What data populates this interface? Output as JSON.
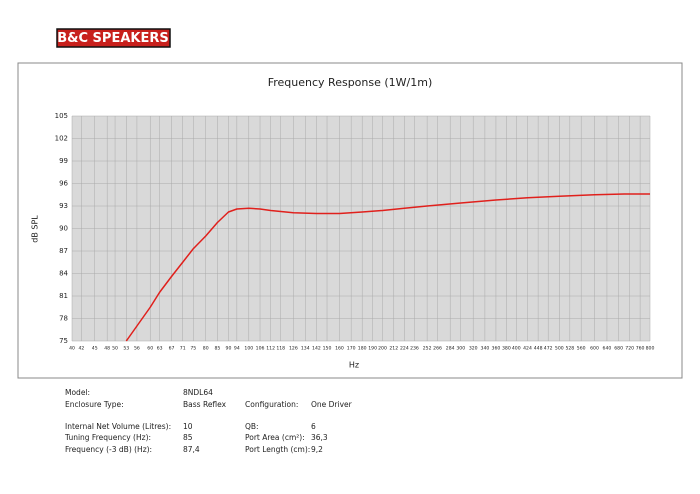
{
  "logo": "B&C SPEAKERS",
  "chart_data": {
    "type": "line",
    "title": "Frequency Response (1W/1m)",
    "x_label": "Hz",
    "y_label": "dB SPL",
    "log_x": true,
    "grid": true,
    "xlim": [
      40,
      800
    ],
    "ylim": [
      75,
      105
    ],
    "xticks": [
      40,
      42,
      45,
      48,
      50,
      53,
      56,
      60,
      63,
      67,
      71,
      75,
      80,
      85,
      90,
      94,
      100,
      106,
      112,
      118,
      126,
      134,
      142,
      150,
      160,
      170,
      180,
      190,
      200,
      212,
      224,
      236,
      252,
      266,
      284,
      300,
      320,
      340,
      360,
      380,
      400,
      424,
      448,
      472,
      500,
      528,
      560,
      600,
      640,
      680,
      720,
      760,
      800
    ],
    "yticks": [
      75,
      78,
      81,
      84,
      87,
      90,
      93,
      96,
      99,
      102,
      105
    ],
    "series": [
      {
        "color": "#e0201c",
        "x": [
          53,
          56,
          60,
          63,
          67,
          71,
          75,
          80,
          85,
          90,
          94,
          100,
          106,
          112,
          126,
          142,
          160,
          180,
          200,
          224,
          252,
          300,
          360,
          424,
          500,
          600,
          700,
          800
        ],
        "values": [
          75,
          77,
          79.5,
          81.5,
          83.6,
          85.5,
          87.3,
          89,
          90.8,
          92.2,
          92.6,
          92.7,
          92.6,
          92.4,
          92.1,
          92,
          92,
          92.2,
          92.4,
          92.7,
          93,
          93.4,
          93.8,
          94.1,
          94.3,
          94.5,
          94.6,
          94.6
        ]
      }
    ]
  },
  "specs": {
    "rows": [
      [
        "Model:",
        "8NDL64"
      ],
      [
        "Enclosure Type:",
        "Bass Reflex",
        "Configuration:",
        "One Driver"
      ],
      [
        "Internal Net Volume (Litres):",
        "10",
        "QB:",
        "6"
      ],
      [
        "Tuning Frequency (Hz):",
        "85",
        "Port Area (cm²):",
        "36,3"
      ],
      [
        "Frequency (-3 dB) (Hz):",
        "87,4",
        "Port Length (cm):",
        "9,2"
      ]
    ]
  }
}
